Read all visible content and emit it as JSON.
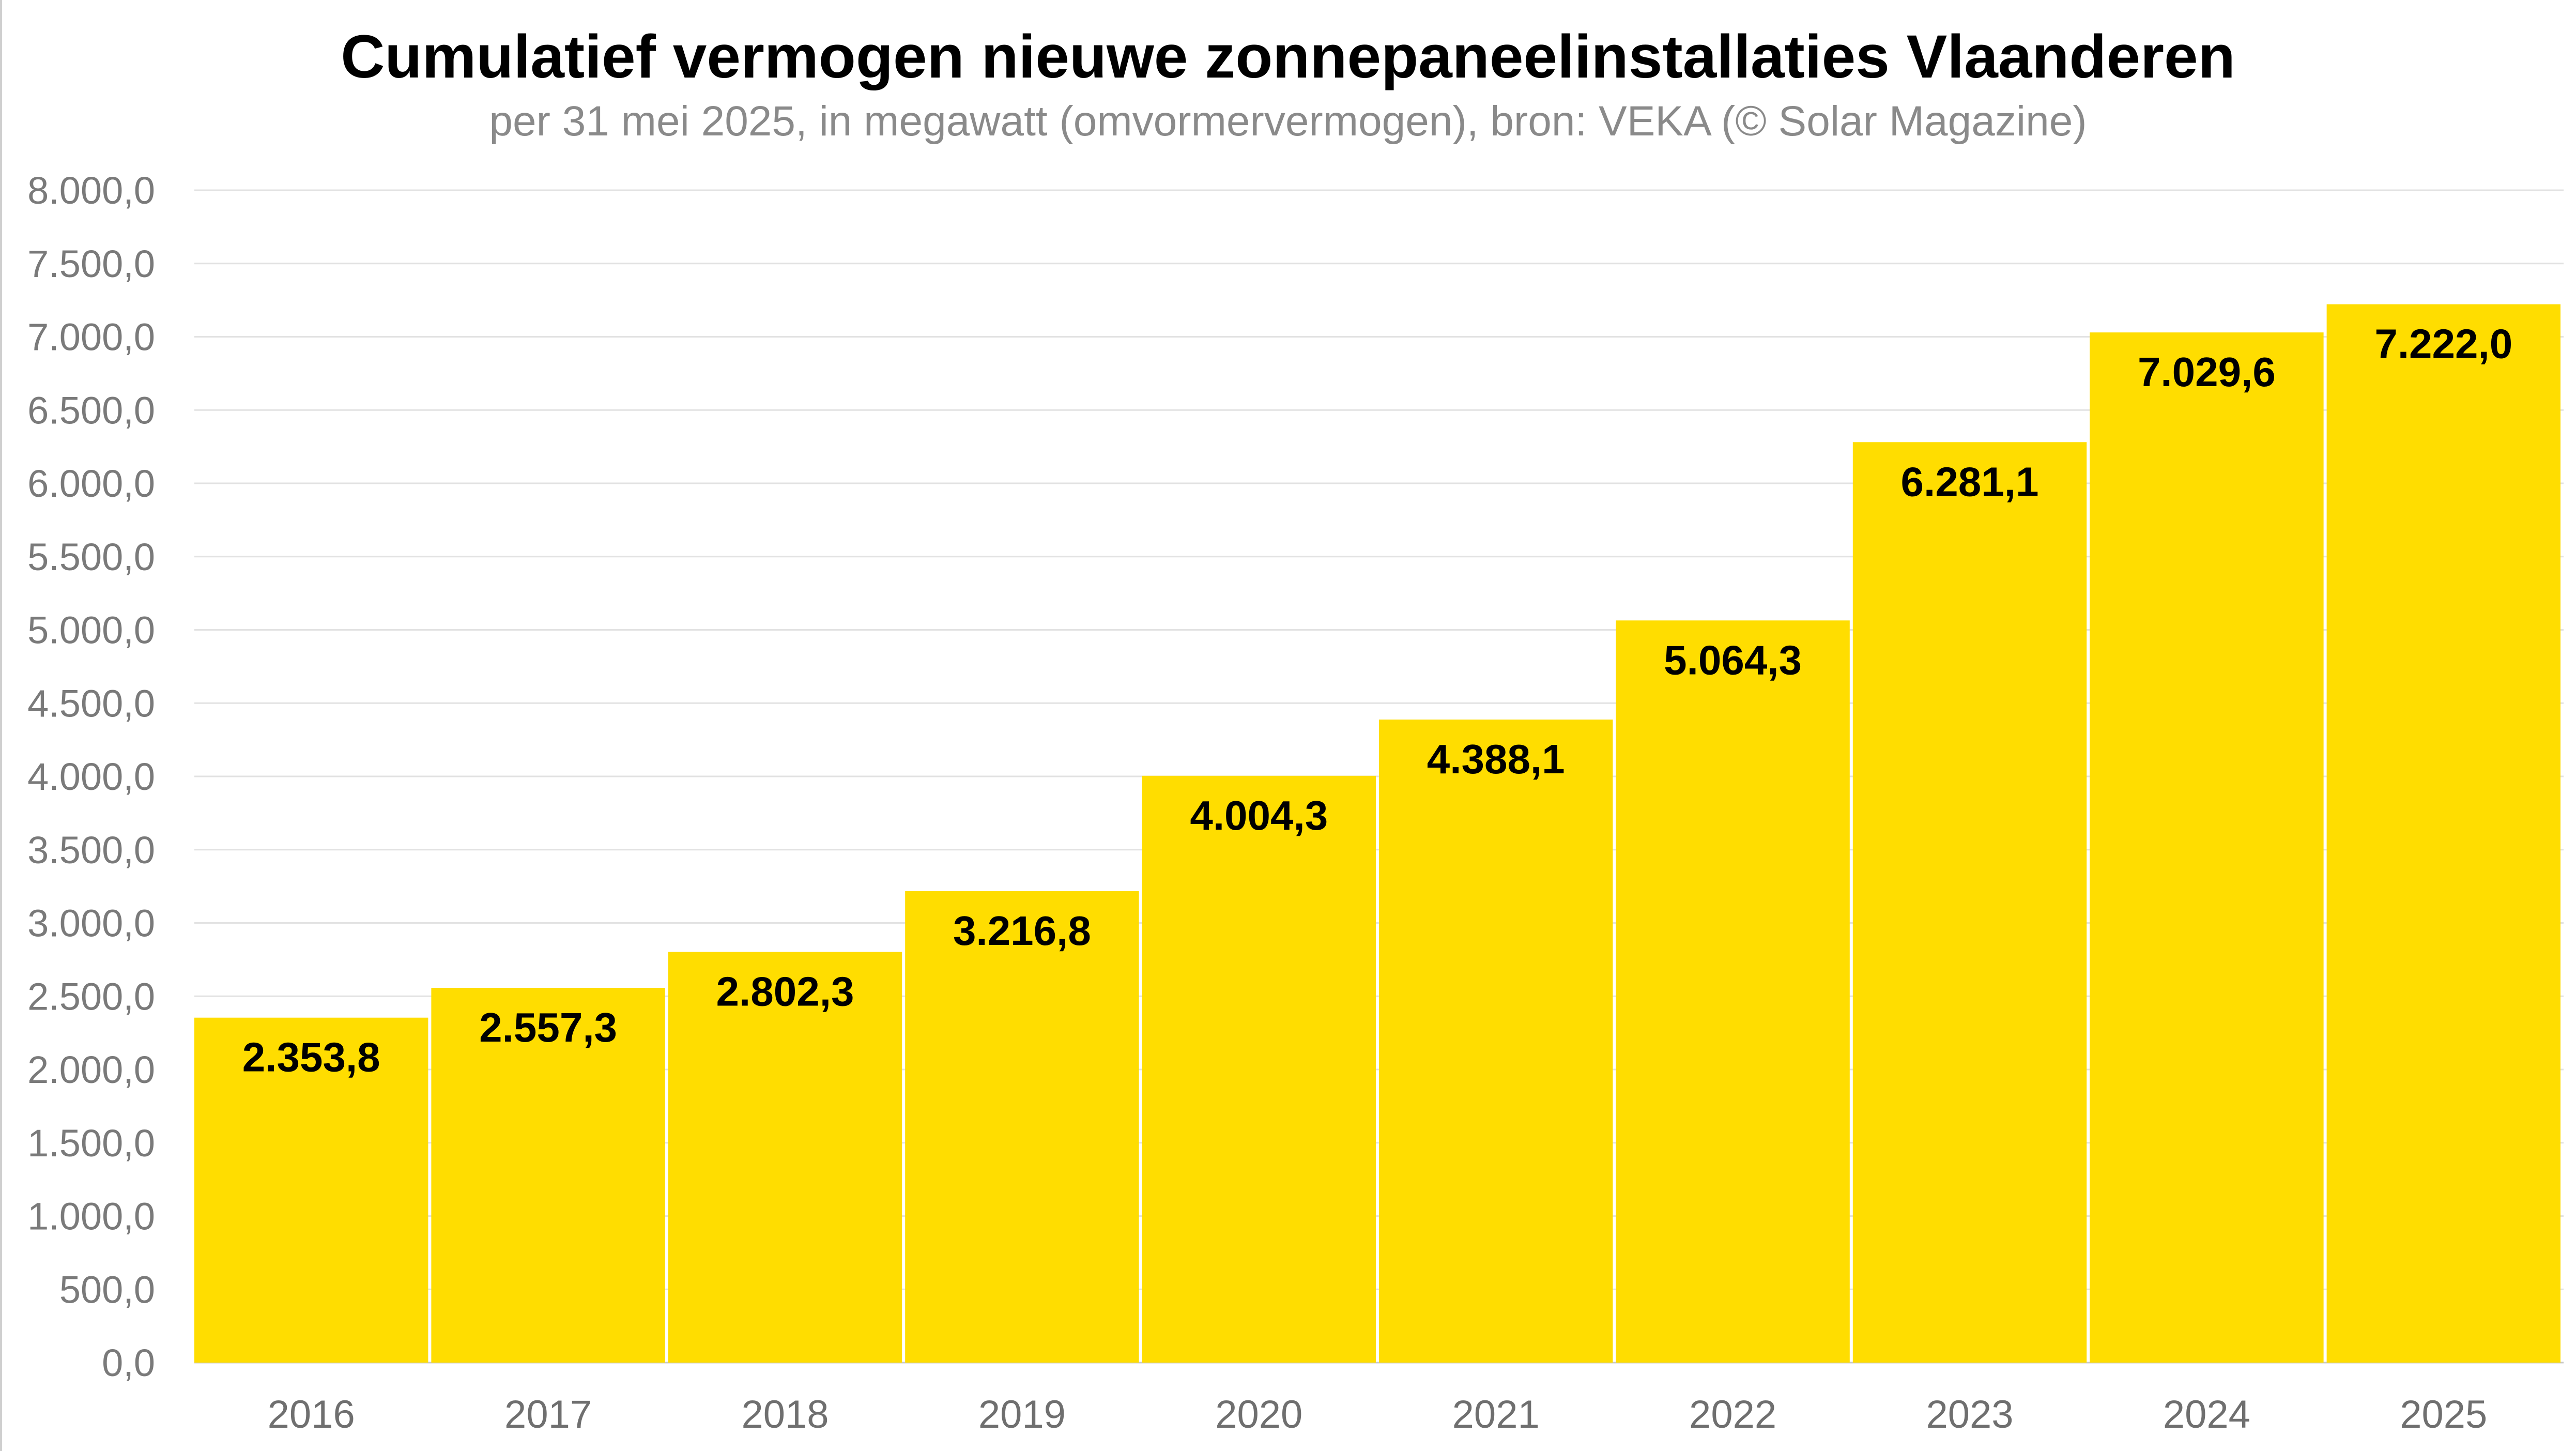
{
  "chart_data": {
    "type": "bar",
    "title": "Cumulatief vermogen nieuwe zonnepaneelinstallaties Vlaanderen",
    "subtitle": "per 31 mei 2025, in megawatt (omvormervermogen), bron: VEKA (© Solar Magazine)",
    "categories": [
      "2016",
      "2017",
      "2018",
      "2019",
      "2020",
      "2021",
      "2022",
      "2023",
      "2024",
      "2025"
    ],
    "values": [
      2353.8,
      2557.3,
      2802.3,
      3216.8,
      4004.3,
      4388.1,
      5064.3,
      6281.1,
      7029.6,
      7222.0
    ],
    "value_labels": [
      "2.353,8",
      "2.557,3",
      "2.802,3",
      "3.216,8",
      "4.004,3",
      "4.388,1",
      "5.064,3",
      "6.281,1",
      "7.029,6",
      "7.222,0"
    ],
    "y_ticks": [
      0,
      500,
      1000,
      1500,
      2000,
      2500,
      3000,
      3500,
      4000,
      4500,
      5000,
      5500,
      6000,
      6500,
      7000,
      7500,
      8000
    ],
    "y_tick_labels": [
      "0,0",
      "500,0",
      "1.000,0",
      "1.500,0",
      "2.000,0",
      "2.500,0",
      "3.000,0",
      "3.500,0",
      "4.000,0",
      "4.500,0",
      "5.000,0",
      "5.500,0",
      "6.000,0",
      "6.500,0",
      "7.000,0",
      "7.500,0",
      "8.000,0"
    ],
    "ylim": [
      0,
      8000
    ],
    "xlabel": "",
    "ylabel": "",
    "grid": true,
    "legend": "none",
    "colors": {
      "bar": "#FFDD00",
      "gridline": "#e2e2e2",
      "axis_text": "#7a7a7a"
    }
  }
}
